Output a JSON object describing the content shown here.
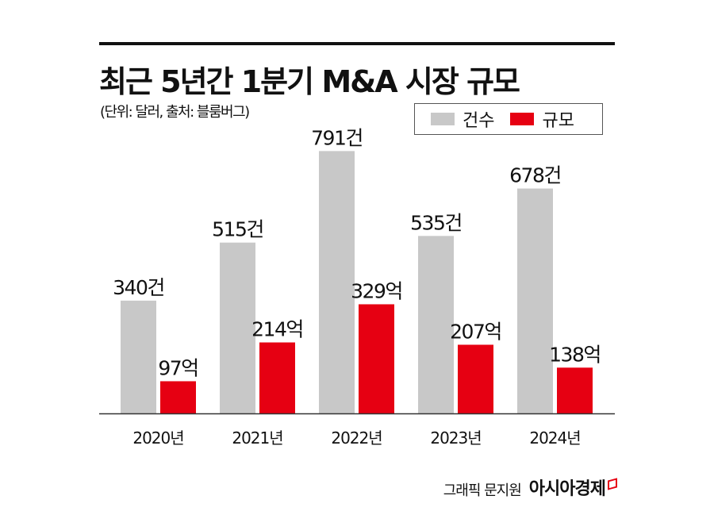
{
  "chart_data": {
    "type": "bar",
    "title": "최근 5년간 1분기 M&A 시장 규모",
    "subtitle": "(단위: 달러, 출처: 블룸버그)",
    "categories": [
      "2020년",
      "2021년",
      "2022년",
      "2023년",
      "2024년"
    ],
    "series": [
      {
        "name": "건수",
        "color": "#c8c8c8",
        "values": [
          340,
          515,
          791,
          535,
          678
        ],
        "labels": [
          "340건",
          "515건",
          "791건",
          "535건",
          "678건"
        ]
      },
      {
        "name": "규모",
        "color": "#e60012",
        "values": [
          97,
          214,
          329,
          207,
          138
        ],
        "labels": [
          "97억",
          "214억",
          "329억",
          "207억",
          "138억"
        ]
      }
    ],
    "legend_position": "top-right",
    "grid": false
  },
  "footer": {
    "credit": "그래픽 문지원",
    "brand": "아시아경제"
  }
}
